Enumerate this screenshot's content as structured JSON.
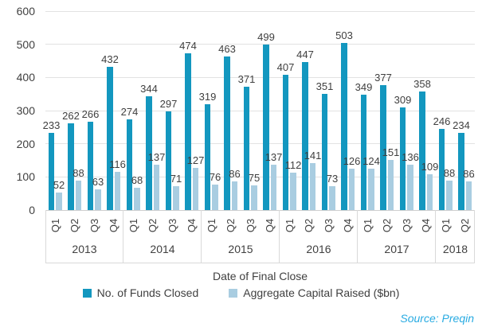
{
  "chart_data": {
    "type": "bar",
    "title": "",
    "xlabel": "Date of Final Close",
    "ylabel": "",
    "ylim": [
      0,
      600
    ],
    "yticks": [
      0,
      100,
      200,
      300,
      400,
      500,
      600
    ],
    "grid": true,
    "legend_position": "bottom",
    "groups": [
      {
        "year": "2013",
        "quarters": [
          "Q1",
          "Q2",
          "Q3",
          "Q4"
        ]
      },
      {
        "year": "2014",
        "quarters": [
          "Q1",
          "Q2",
          "Q3",
          "Q4"
        ]
      },
      {
        "year": "2015",
        "quarters": [
          "Q1",
          "Q2",
          "Q3",
          "Q4"
        ]
      },
      {
        "year": "2016",
        "quarters": [
          "Q1",
          "Q2",
          "Q3",
          "Q4"
        ]
      },
      {
        "year": "2017",
        "quarters": [
          "Q1",
          "Q2",
          "Q3",
          "Q4"
        ]
      },
      {
        "year": "2018",
        "quarters": [
          "Q1",
          "Q2"
        ]
      }
    ],
    "series": [
      {
        "name": "No. of Funds Closed",
        "color": "#1397bf",
        "values": [
          233,
          262,
          266,
          432,
          274,
          344,
          297,
          474,
          319,
          463,
          371,
          499,
          407,
          447,
          351,
          503,
          349,
          377,
          309,
          358,
          246,
          234
        ]
      },
      {
        "name": "Aggregate Capital Raised ($bn)",
        "color": "#a9cde1",
        "values": [
          52,
          88,
          63,
          116,
          68,
          137,
          71,
          127,
          76,
          86,
          75,
          137,
          112,
          141,
          73,
          126,
          124,
          151,
          136,
          109,
          88,
          86
        ]
      }
    ],
    "source": "Source: Preqin"
  },
  "colors": {
    "funds_bar": "#1397bf",
    "capital_bar": "#a9cde1",
    "gridline": "#e2e2e2",
    "band_line": "#d9d9d9",
    "text": "#404040",
    "source_text": "#29abe2"
  }
}
